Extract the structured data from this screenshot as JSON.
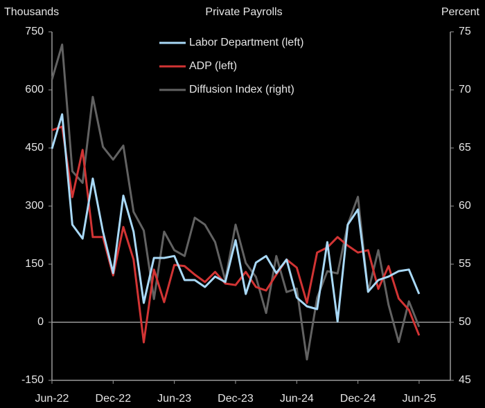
{
  "chart_data": {
    "type": "line",
    "title": "Private Payrolls",
    "ylabel": "Thousands",
    "y2label": "Percent",
    "categories": [
      "Jun-22",
      null,
      null,
      null,
      null,
      null,
      "Dec-22",
      null,
      null,
      null,
      null,
      null,
      "Jun-23",
      null,
      null,
      null,
      null,
      null,
      "Dec-23",
      null,
      null,
      null,
      null,
      null,
      "Jun-24",
      null,
      null,
      null,
      null,
      null,
      "Dec-24",
      null,
      null,
      null,
      null,
      null,
      "Jun-25"
    ],
    "series": [
      {
        "name": "Labor Department (left)",
        "color": "#a9d9f7",
        "values": [
          448,
          537,
          252,
          216,
          371,
          234,
          127,
          327,
          234,
          50,
          166,
          166,
          171,
          109,
          109,
          91,
          118,
          104,
          212,
          73,
          154,
          171,
          127,
          162,
          64,
          41,
          34,
          207,
          2,
          252,
          291,
          79,
          109,
          118,
          132,
          136,
          73
        ]
      },
      {
        "name": "ADP (left)",
        "color": "#d23434",
        "values": [
          496,
          505,
          323,
          445,
          220,
          220,
          121,
          246,
          162,
          -52,
          136,
          52,
          148,
          145,
          123,
          104,
          130,
          100,
          96,
          130,
          91,
          82,
          123,
          162,
          141,
          50,
          180,
          193,
          220,
          198,
          180,
          186,
          86,
          145,
          61,
          32,
          -34
        ]
      },
      {
        "name": "Diffusion Index (right)",
        "color": "#626262",
        "axis": "y2",
        "values": [
          70.9,
          73.9,
          63.0,
          62.0,
          69.4,
          65.1,
          64.0,
          65.2,
          59.5,
          57.9,
          52.0,
          57.8,
          56.2,
          55.7,
          59.0,
          58.4,
          56.9,
          53.6,
          58.4,
          55.1,
          53.9,
          50.8,
          55.7,
          52.6,
          52.9,
          46.8,
          52.1,
          54.4,
          54.2,
          58.4,
          60.8,
          52.6,
          56.2,
          51.5,
          48.3,
          51.8,
          49.6
        ]
      }
    ],
    "ylim": [
      -150,
      750
    ],
    "yticks": [
      -150,
      0,
      150,
      300,
      450,
      600,
      750
    ],
    "y2lim": [
      45,
      75
    ],
    "y2ticks": [
      45,
      50,
      55,
      60,
      65,
      70,
      75
    ],
    "grid": false,
    "legend": "top"
  }
}
